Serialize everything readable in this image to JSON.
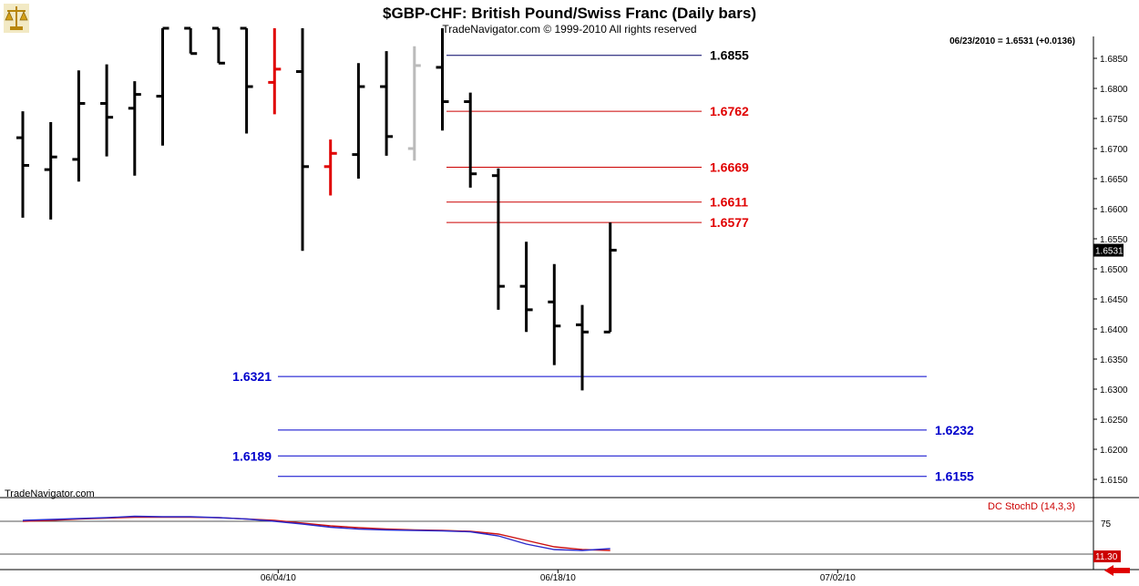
{
  "header": {
    "title": "$GBP-CHF:  British Pound/Swiss Franc  (Daily bars)",
    "copyright": "TradeNavigator.com © 1999-2010 All rights reserved",
    "quote": "06/23/2010 = 1.6531 (+0.0136)",
    "watermark": "TradeNavigator.com",
    "logo_icon": "scales-icon"
  },
  "colors": {
    "bar": "#000000",
    "bar_up_red": "#e00000",
    "bar_gray": "#bbbbbb",
    "resistance": "#cc0000",
    "support": "#0000cc",
    "level_text_blue": "#0000cc",
    "stoch_k": "#2a2acc",
    "stoch_d": "#cc1111"
  },
  "chart_data": {
    "type": "ohlc",
    "symbol": "$GBP-CHF",
    "yaxis_ticks": [
      "1.6850",
      "1.6800",
      "1.6750",
      "1.6700",
      "1.6650",
      "1.6600",
      "1.6550",
      "1.6500",
      "1.6450",
      "1.6400",
      "1.6350",
      "1.6300",
      "1.6250",
      "1.6200",
      "1.6150"
    ],
    "last_price_label": "1.6531",
    "xaxis_ticks": [
      {
        "label": "06/04/10",
        "index": 9
      },
      {
        "label": "06/18/10",
        "index": 19
      },
      {
        "label": "07/02/10",
        "index": 29
      }
    ],
    "bars": [
      {
        "o": 1.6718,
        "h": 1.6762,
        "l": 1.6585,
        "c": 1.6672,
        "color": "black"
      },
      {
        "o": 1.6665,
        "h": 1.6744,
        "l": 1.6582,
        "c": 1.6686,
        "color": "black"
      },
      {
        "o": 1.6682,
        "h": 1.683,
        "l": 1.6645,
        "c": 1.6775,
        "color": "black"
      },
      {
        "o": 1.6775,
        "h": 1.684,
        "l": 1.6687,
        "c": 1.6752,
        "color": "black"
      },
      {
        "o": 1.6767,
        "h": 1.6812,
        "l": 1.6655,
        "c": 1.679,
        "color": "black"
      },
      {
        "o": 1.6787,
        "h": 1.69,
        "l": 1.6705,
        "c": 1.69,
        "color": "black"
      },
      {
        "o": 1.69,
        "h": 1.69,
        "l": 1.6858,
        "c": 1.6858,
        "color": "black"
      },
      {
        "o": 1.69,
        "h": 1.69,
        "l": 1.6842,
        "c": 1.6842,
        "color": "black"
      },
      {
        "o": 1.69,
        "h": 1.69,
        "l": 1.6725,
        "c": 1.6803,
        "color": "black"
      },
      {
        "o": 1.681,
        "h": 1.69,
        "l": 1.6757,
        "c": 1.6832,
        "color": "red"
      },
      {
        "o": 1.6828,
        "h": 1.69,
        "l": 1.653,
        "c": 1.667,
        "color": "black"
      },
      {
        "o": 1.667,
        "h": 1.6715,
        "l": 1.6622,
        "c": 1.6692,
        "color": "red"
      },
      {
        "o": 1.669,
        "h": 1.6842,
        "l": 1.665,
        "c": 1.6803,
        "color": "black"
      },
      {
        "o": 1.6803,
        "h": 1.6862,
        "l": 1.6688,
        "c": 1.672,
        "color": "black"
      },
      {
        "o": 1.67,
        "h": 1.687,
        "l": 1.668,
        "c": 1.6838,
        "color": "gray"
      },
      {
        "o": 1.6835,
        "h": 1.69,
        "l": 1.673,
        "c": 1.6778,
        "color": "black"
      },
      {
        "o": 1.6778,
        "h": 1.6793,
        "l": 1.6635,
        "c": 1.6658,
        "color": "black"
      },
      {
        "o": 1.6655,
        "h": 1.6667,
        "l": 1.6432,
        "c": 1.6471,
        "color": "black"
      },
      {
        "o": 1.6471,
        "h": 1.6545,
        "l": 1.6395,
        "c": 1.6432,
        "color": "black"
      },
      {
        "o": 1.6445,
        "h": 1.6508,
        "l": 1.634,
        "c": 1.6405,
        "color": "black"
      },
      {
        "o": 1.6407,
        "h": 1.644,
        "l": 1.6298,
        "c": 1.6395,
        "color": "black"
      },
      {
        "o": 1.6395,
        "h": 1.6577,
        "l": 1.6395,
        "c": 1.6531,
        "color": "black"
      }
    ],
    "levels": [
      {
        "label": "1.6855",
        "value": 1.6855,
        "kind": "resistance-major",
        "from": 16,
        "to": 33,
        "label_side": "right"
      },
      {
        "label": "1.6762",
        "value": 1.6762,
        "kind": "resistance",
        "from": 16,
        "to": 33,
        "label_side": "right"
      },
      {
        "label": "1.6669",
        "value": 1.6669,
        "kind": "resistance",
        "from": 16,
        "to": 33,
        "label_side": "right"
      },
      {
        "label": "1.6611",
        "value": 1.6611,
        "kind": "resistance",
        "from": 16,
        "to": 33,
        "label_side": "right"
      },
      {
        "label": "1.6577",
        "value": 1.6577,
        "kind": "resistance",
        "from": 16,
        "to": 33,
        "label_side": "right"
      },
      {
        "label": "1.6321",
        "value": 1.6321,
        "kind": "support",
        "from": 10,
        "to": 33,
        "label_side": "left"
      },
      {
        "label": "1.6232",
        "value": 1.6232,
        "kind": "support",
        "from": 10,
        "to": 33,
        "label_side": "right"
      },
      {
        "label": "1.6189",
        "value": 1.6189,
        "kind": "support",
        "from": 10,
        "to": 33,
        "label_side": "left"
      },
      {
        "label": "1.6155",
        "value": 1.6155,
        "kind": "support",
        "from": 10,
        "to": 33,
        "label_side": "right"
      }
    ],
    "stochastic": {
      "label": "DC StochD (14,3,3)",
      "level_label": "75",
      "last_label": "11.30",
      "k": [
        82,
        84,
        86,
        88,
        91,
        90,
        90,
        88,
        85,
        80,
        74,
        67,
        63,
        61,
        60,
        59,
        57,
        48,
        30,
        18,
        16,
        20
      ],
      "d": [
        80,
        82,
        85,
        87,
        89,
        89,
        89,
        88,
        85,
        82,
        76,
        70,
        66,
        63,
        61,
        60,
        58,
        52,
        38,
        24,
        18,
        16
      ]
    }
  }
}
